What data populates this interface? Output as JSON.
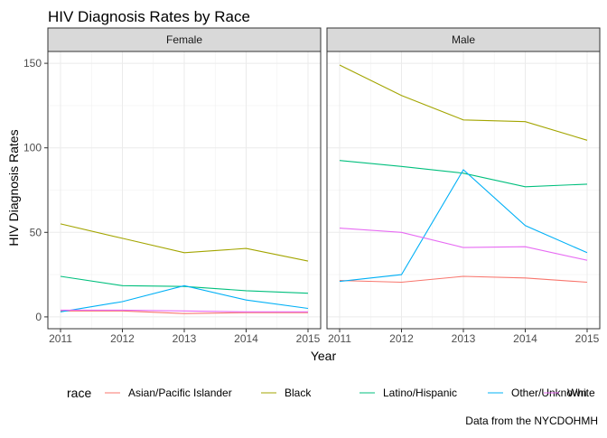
{
  "chart_data": {
    "type": "line",
    "title": "HIV Diagnosis Rates by Race",
    "xlabel": "Year",
    "ylabel": "HIV Diagnosis Rates",
    "caption": "Data from the NYCDOHMH",
    "x": [
      2011,
      2012,
      2013,
      2014,
      2015
    ],
    "x_ticks": [
      "2011",
      "2012",
      "2013",
      "2014",
      "2015"
    ],
    "y_ticks": [
      "0",
      "50",
      "100",
      "150"
    ],
    "y_tick_values": [
      0,
      50,
      100,
      150
    ],
    "xlim": [
      2011,
      2015
    ],
    "ylim": [
      -7,
      157
    ],
    "grid": true,
    "legend": {
      "title": "race",
      "position": "bottom",
      "entries": [
        "Asian/Pacific Islander",
        "Black",
        "Latino/Hispanic",
        "Other/Unknown",
        "White"
      ]
    },
    "panels": [
      {
        "label": "Female",
        "series": [
          {
            "name": "Asian/Pacific Islander",
            "color": "#F8766D",
            "values": [
              3.5,
              3.5,
              2,
              2.5,
              2.5
            ]
          },
          {
            "name": "Black",
            "color": "#A3A500",
            "values": [
              55,
              46.5,
              38,
              40.5,
              33
            ]
          },
          {
            "name": "Latino/Hispanic",
            "color": "#00BF7D",
            "values": [
              24,
              18.5,
              18,
              15.5,
              14
            ]
          },
          {
            "name": "Other/Unknown",
            "color": "#00B0F6",
            "values": [
              3,
              9,
              18.5,
              10,
              5
            ]
          },
          {
            "name": "White",
            "color": "#E76BF3",
            "values": [
              4,
              4,
              3.5,
              3,
              3
            ]
          }
        ]
      },
      {
        "label": "Male",
        "series": [
          {
            "name": "Asian/Pacific Islander",
            "color": "#F8766D",
            "values": [
              21.5,
              20.5,
              24,
              23,
              20.5
            ]
          },
          {
            "name": "Black",
            "color": "#A3A500",
            "values": [
              149,
              131,
              116.5,
              115.5,
              104.5
            ]
          },
          {
            "name": "Latino/Hispanic",
            "color": "#00BF7D",
            "values": [
              92.5,
              89,
              85,
              77,
              78.5
            ]
          },
          {
            "name": "Other/Unknown",
            "color": "#00B0F6",
            "values": [
              21,
              25,
              87,
              54,
              38
            ]
          },
          {
            "name": "White",
            "color": "#E76BF3",
            "values": [
              52.5,
              50,
              41,
              41.5,
              33.5
            ]
          }
        ]
      }
    ]
  }
}
